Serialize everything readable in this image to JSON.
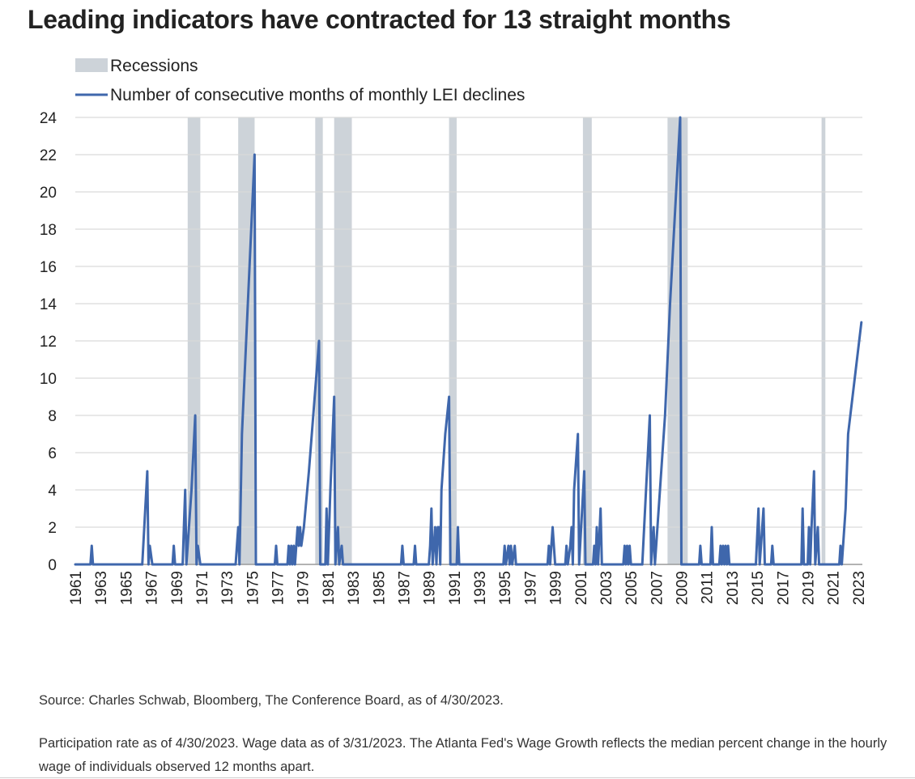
{
  "title": "Leading indicators have contracted for 13 straight months",
  "source": "Source: Charles Schwab, Bloomberg, The Conference Board, as of 4/30/2023.",
  "footnote": "Participation rate as of 4/30/2023. Wage data as of 3/31/2023. The Atlanta Fed's Wage Growth reflects the median percent change in the hourly wage of individuals observed 12 months apart.",
  "colors": {
    "line": "#3f67ac",
    "recession": "#cdd3d9",
    "grid": "#d9d9d9",
    "axis": "#9a9a9a",
    "text": "#222222"
  },
  "chart_data": {
    "type": "line",
    "xlabel": "",
    "ylabel": "",
    "x_range": [
      1961,
      2023.33
    ],
    "ylim": [
      0,
      24
    ],
    "y_ticks": [
      0,
      2,
      4,
      6,
      8,
      10,
      12,
      14,
      16,
      18,
      20,
      22,
      24
    ],
    "x_tick_labels": [
      "1961",
      "1963",
      "1965",
      "1967",
      "1969",
      "1971",
      "1973",
      "1975",
      "1977",
      "1979",
      "1981",
      "1983",
      "1985",
      "1987",
      "1989",
      "1991",
      "1993",
      "1995",
      "1997",
      "1999",
      "2001",
      "2003",
      "2005",
      "2007",
      "2009",
      "2011",
      "2013",
      "2015",
      "2017",
      "2019",
      "2021",
      "2023"
    ],
    "grid": true,
    "legend_position": "top-left",
    "legend": [
      {
        "label": "Recessions",
        "kind": "band"
      },
      {
        "label": "Number of consecutive months of monthly LEI declines",
        "kind": "line"
      }
    ],
    "recessions": [
      [
        1969.9,
        1970.9
      ],
      [
        1973.9,
        1975.2
      ],
      [
        1980.0,
        1980.6
      ],
      [
        1981.5,
        1982.9
      ],
      [
        1990.6,
        1991.2
      ],
      [
        2001.2,
        2001.9
      ],
      [
        2007.9,
        2009.5
      ],
      [
        2020.1,
        2020.4
      ]
    ],
    "series": [
      {
        "name": "Number of consecutive months of monthly LEI declines",
        "points": [
          [
            1961.0,
            0
          ],
          [
            1962.2,
            0
          ],
          [
            1962.3,
            1
          ],
          [
            1962.4,
            0
          ],
          [
            1966.3,
            0
          ],
          [
            1966.7,
            5
          ],
          [
            1966.8,
            0
          ],
          [
            1966.9,
            1
          ],
          [
            1967.1,
            0
          ],
          [
            1968.7,
            0
          ],
          [
            1968.8,
            1
          ],
          [
            1968.9,
            0
          ],
          [
            1969.5,
            0
          ],
          [
            1969.6,
            2
          ],
          [
            1969.7,
            4
          ],
          [
            1969.8,
            0
          ],
          [
            1970.2,
            4
          ],
          [
            1970.5,
            8
          ],
          [
            1970.6,
            0
          ],
          [
            1970.7,
            1
          ],
          [
            1970.9,
            0
          ],
          [
            1973.7,
            0
          ],
          [
            1973.9,
            2
          ],
          [
            1974.0,
            0
          ],
          [
            1974.2,
            7
          ],
          [
            1975.2,
            22
          ],
          [
            1975.3,
            0
          ],
          [
            1976.8,
            0
          ],
          [
            1976.9,
            1
          ],
          [
            1977.0,
            0
          ],
          [
            1977.8,
            0
          ],
          [
            1977.9,
            1
          ],
          [
            1978.0,
            0
          ],
          [
            1978.1,
            1
          ],
          [
            1978.2,
            0
          ],
          [
            1978.3,
            1
          ],
          [
            1978.4,
            0
          ],
          [
            1978.5,
            1
          ],
          [
            1978.6,
            2
          ],
          [
            1978.7,
            1
          ],
          [
            1978.8,
            2
          ],
          [
            1978.9,
            1
          ],
          [
            1979.1,
            2
          ],
          [
            1979.5,
            5
          ],
          [
            1980.3,
            12
          ],
          [
            1980.4,
            0
          ],
          [
            1980.8,
            0
          ],
          [
            1980.9,
            3
          ],
          [
            1981.0,
            0
          ],
          [
            1981.2,
            4
          ],
          [
            1981.5,
            9
          ],
          [
            1981.6,
            0
          ],
          [
            1981.8,
            2
          ],
          [
            1981.9,
            0
          ],
          [
            1982.1,
            1
          ],
          [
            1982.2,
            0
          ],
          [
            1986.8,
            0
          ],
          [
            1986.9,
            1
          ],
          [
            1987.0,
            0
          ],
          [
            1987.8,
            0
          ],
          [
            1987.9,
            1
          ],
          [
            1988.0,
            0
          ],
          [
            1989.0,
            0
          ],
          [
            1989.1,
            1
          ],
          [
            1989.2,
            3
          ],
          [
            1989.3,
            0
          ],
          [
            1989.4,
            1
          ],
          [
            1989.5,
            2
          ],
          [
            1989.6,
            0
          ],
          [
            1989.7,
            2
          ],
          [
            1989.8,
            2
          ],
          [
            1989.9,
            0
          ],
          [
            1990.0,
            4
          ],
          [
            1990.3,
            7
          ],
          [
            1990.6,
            9
          ],
          [
            1990.7,
            0
          ],
          [
            1991.2,
            0
          ],
          [
            1991.3,
            2
          ],
          [
            1991.4,
            0
          ],
          [
            1994.9,
            0
          ],
          [
            1995.0,
            1
          ],
          [
            1995.1,
            0
          ],
          [
            1995.3,
            1
          ],
          [
            1995.4,
            0
          ],
          [
            1995.5,
            1
          ],
          [
            1995.6,
            0
          ],
          [
            1995.8,
            1
          ],
          [
            1995.9,
            0
          ],
          [
            1998.4,
            0
          ],
          [
            1998.5,
            1
          ],
          [
            1998.6,
            0
          ],
          [
            1998.7,
            1
          ],
          [
            1998.8,
            2
          ],
          [
            1998.9,
            1
          ],
          [
            1999.0,
            0
          ],
          [
            1999.8,
            0
          ],
          [
            1999.9,
            1
          ],
          [
            2000.0,
            0
          ],
          [
            2000.2,
            1
          ],
          [
            2000.3,
            2
          ],
          [
            2000.4,
            0
          ],
          [
            2000.5,
            4
          ],
          [
            2000.8,
            7
          ],
          [
            2000.9,
            0
          ],
          [
            2001.3,
            5
          ],
          [
            2001.4,
            0
          ],
          [
            2002.0,
            0
          ],
          [
            2002.1,
            1
          ],
          [
            2002.2,
            0
          ],
          [
            2002.3,
            2
          ],
          [
            2002.4,
            0
          ],
          [
            2002.6,
            3
          ],
          [
            2002.7,
            0
          ],
          [
            2004.4,
            0
          ],
          [
            2004.5,
            1
          ],
          [
            2004.6,
            0
          ],
          [
            2004.7,
            1
          ],
          [
            2004.8,
            0
          ],
          [
            2004.9,
            1
          ],
          [
            2005.0,
            0
          ],
          [
            2005.9,
            0
          ],
          [
            2006.5,
            8
          ],
          [
            2006.6,
            0
          ],
          [
            2006.8,
            2
          ],
          [
            2006.9,
            0
          ],
          [
            2007.7,
            8
          ],
          [
            2008.1,
            14
          ],
          [
            2008.9,
            24
          ],
          [
            2009.0,
            0
          ],
          [
            2010.4,
            0
          ],
          [
            2010.5,
            1
          ],
          [
            2010.6,
            0
          ],
          [
            2011.3,
            0
          ],
          [
            2011.4,
            2
          ],
          [
            2011.5,
            0
          ],
          [
            2012.0,
            0
          ],
          [
            2012.1,
            1
          ],
          [
            2012.2,
            0
          ],
          [
            2012.3,
            1
          ],
          [
            2012.4,
            0
          ],
          [
            2012.5,
            1
          ],
          [
            2012.6,
            0
          ],
          [
            2012.7,
            1
          ],
          [
            2012.8,
            0
          ],
          [
            2014.9,
            0
          ],
          [
            2015.1,
            3
          ],
          [
            2015.2,
            0
          ],
          [
            2015.5,
            3
          ],
          [
            2015.6,
            0
          ],
          [
            2016.1,
            0
          ],
          [
            2016.2,
            1
          ],
          [
            2016.3,
            0
          ],
          [
            2018.5,
            0
          ],
          [
            2018.6,
            3
          ],
          [
            2018.7,
            0
          ],
          [
            2019.0,
            0
          ],
          [
            2019.1,
            2
          ],
          [
            2019.2,
            0
          ],
          [
            2019.3,
            2
          ],
          [
            2019.5,
            5
          ],
          [
            2019.6,
            0
          ],
          [
            2019.8,
            2
          ],
          [
            2019.9,
            0
          ],
          [
            2021.5,
            0
          ],
          [
            2021.6,
            1
          ],
          [
            2021.7,
            0
          ],
          [
            2022.0,
            3
          ],
          [
            2022.2,
            7
          ],
          [
            2023.25,
            13
          ]
        ]
      }
    ]
  }
}
